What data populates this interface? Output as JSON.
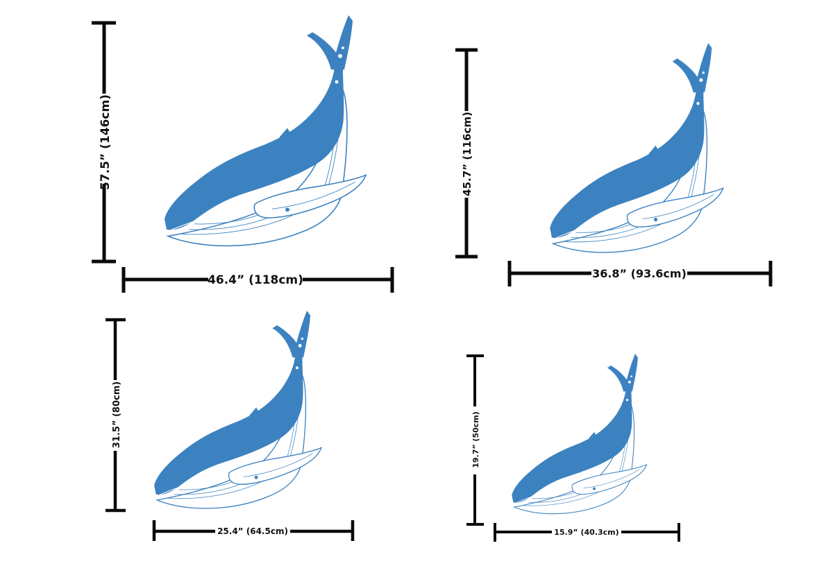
{
  "colors": {
    "whale_body": "#3c82c0",
    "whale_line": "#3c82c0",
    "dimension_line": "#0a0a0a",
    "background": "#ffffff"
  },
  "variants": [
    {
      "id": "xl",
      "height_label": "57.5” (146cm)",
      "width_label": "46.4” (118cm)"
    },
    {
      "id": "lg",
      "height_label": "45.7” (116cm)",
      "width_label": "36.8” (93.6cm)"
    },
    {
      "id": "md",
      "height_label": "31.5” (80cm)",
      "width_label": "25.4” (64.5cm)"
    },
    {
      "id": "sm",
      "height_label": "19.7” (50cm)",
      "width_label": "15.9” (40.3cm)"
    }
  ]
}
